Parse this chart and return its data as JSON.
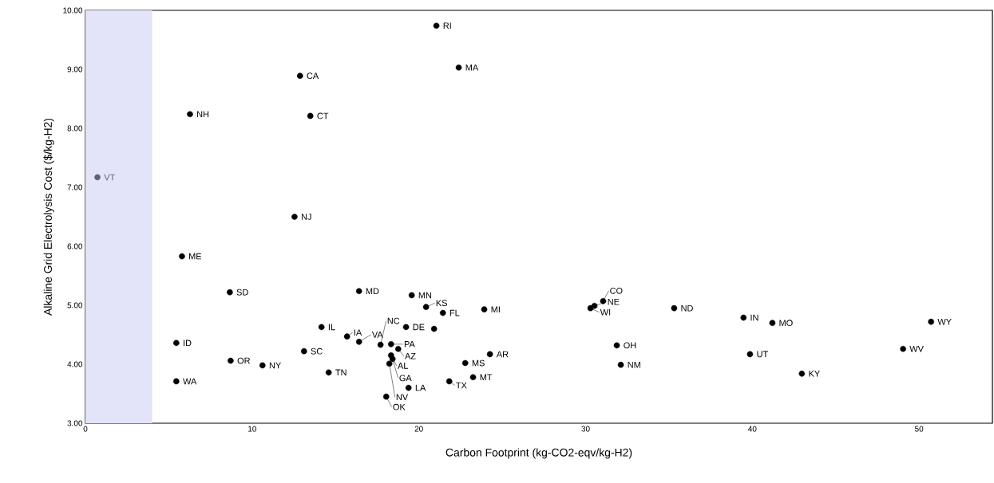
{
  "chart_data": {
    "type": "scatter",
    "xlabel": "Carbon Footprint  (kg-CO2-eqv/kg-H2)",
    "ylabel": "Alkaline Grid Electrolysis Cost ($/kg-H2)",
    "x": [
      21.05,
      22.39,
      12.87,
      6.27,
      13.49,
      0.72,
      12.54,
      5.79,
      8.66,
      16.41,
      19.57,
      20.43,
      21.44,
      23.92,
      19.23,
      20.91,
      14.16,
      15.69,
      16.41,
      17.7,
      18.33,
      18.76,
      18.33,
      18.42,
      18.23,
      13.11,
      14.59,
      18.04,
      19.38,
      21.82,
      23.25,
      22.78,
      24.26,
      5.45,
      8.71,
      10.62,
      5.45,
      30.29,
      30.53,
      31.05,
      35.31,
      31.87,
      32.11,
      39.47,
      41.2,
      39.86,
      42.97,
      50.72,
      49.04
    ],
    "values": [
      9.74,
      9.03,
      8.89,
      8.24,
      8.21,
      7.17,
      6.5,
      5.83,
      5.22,
      5.24,
      5.17,
      4.97,
      4.87,
      4.93,
      4.63,
      4.6,
      4.63,
      4.47,
      4.38,
      4.33,
      4.34,
      4.26,
      4.15,
      4.09,
      4.01,
      4.22,
      3.86,
      3.45,
      3.6,
      3.71,
      3.78,
      4.02,
      4.17,
      4.36,
      4.06,
      3.98,
      3.71,
      4.95,
      4.99,
      5.07,
      4.95,
      4.32,
      3.99,
      4.79,
      4.7,
      4.17,
      3.84,
      4.72,
      4.26
    ],
    "colors": [
      "#000000",
      "#000000",
      "#000000",
      "#000000",
      "#000000",
      "#60607a",
      "#000000",
      "#000000",
      "#000000",
      "#000000",
      "#000000",
      "#000000",
      "#000000",
      "#000000",
      "#000000",
      "#000000",
      "#000000",
      "#000000",
      "#000000",
      "#000000",
      "#000000",
      "#000000",
      "#000000",
      "#000000",
      "#000000",
      "#000000",
      "#000000",
      "#000000",
      "#000000",
      "#000000",
      "#000000",
      "#000000",
      "#000000",
      "#000000",
      "#000000",
      "#000000",
      "#000000",
      "#000000",
      "#000000",
      "#000000",
      "#000000",
      "#000000",
      "#000000",
      "#000000",
      "#000000",
      "#000000",
      "#000000",
      "#000000",
      "#000000"
    ],
    "annotations": [
      {
        "text": "RI",
        "x": 21.05,
        "y": 9.74
      },
      {
        "text": "MA",
        "x": 22.39,
        "y": 9.03
      },
      {
        "text": "CA",
        "x": 12.87,
        "y": 8.89
      },
      {
        "text": "NH",
        "x": 6.27,
        "y": 8.24
      },
      {
        "text": "CT",
        "x": 13.49,
        "y": 8.21
      },
      {
        "text": "VT",
        "x": 0.72,
        "y": 7.17
      },
      {
        "text": "NJ",
        "x": 12.54,
        "y": 6.5
      },
      {
        "text": "ME",
        "x": 5.79,
        "y": 5.83
      },
      {
        "text": "SD",
        "x": 8.66,
        "y": 5.22
      },
      {
        "text": "MD",
        "x": 16.41,
        "y": 5.24
      },
      {
        "text": "MN",
        "x": 19.57,
        "y": 5.17
      },
      {
        "text": "KS",
        "x": 20.43,
        "y": 4.97
      },
      {
        "text": "FL",
        "x": 21.44,
        "y": 4.87
      },
      {
        "text": "MI",
        "x": 23.92,
        "y": 4.93
      },
      {
        "text": "DE",
        "x": 19.23,
        "y": 4.63
      },
      {
        "text": "IL",
        "x": 14.16,
        "y": 4.63
      },
      {
        "text": "IA",
        "x": 15.69,
        "y": 4.47
      },
      {
        "text": "VA",
        "x": 16.41,
        "y": 4.38
      },
      {
        "text": "NC",
        "x": 17.7,
        "y": 4.33
      },
      {
        "text": "PA",
        "x": 18.33,
        "y": 4.34
      },
      {
        "text": "AZ",
        "x": 18.76,
        "y": 4.26
      },
      {
        "text": "AL",
        "x": 18.33,
        "y": 4.15
      },
      {
        "text": "GA",
        "x": 18.42,
        "y": 4.09
      },
      {
        "text": "NV",
        "x": 18.23,
        "y": 4.01
      },
      {
        "text": "SC",
        "x": 13.11,
        "y": 4.22
      },
      {
        "text": "TN",
        "x": 14.59,
        "y": 3.86
      },
      {
        "text": "OK",
        "x": 18.04,
        "y": 3.45
      },
      {
        "text": "LA",
        "x": 19.38,
        "y": 3.6
      },
      {
        "text": "TX",
        "x": 21.82,
        "y": 3.71
      },
      {
        "text": "MT",
        "x": 23.25,
        "y": 3.78
      },
      {
        "text": "MS",
        "x": 22.78,
        "y": 4.02
      },
      {
        "text": "AR",
        "x": 24.26,
        "y": 4.17
      },
      {
        "text": "ID",
        "x": 5.45,
        "y": 4.36
      },
      {
        "text": "OR",
        "x": 8.71,
        "y": 4.06
      },
      {
        "text": "NY",
        "x": 10.62,
        "y": 3.98
      },
      {
        "text": "WA",
        "x": 5.45,
        "y": 3.71
      },
      {
        "text": "WI",
        "x": 30.29,
        "y": 4.95
      },
      {
        "text": "NE",
        "x": 30.53,
        "y": 4.99
      },
      {
        "text": "CO",
        "x": 31.05,
        "y": 5.07
      },
      {
        "text": "ND",
        "x": 35.31,
        "y": 4.95
      },
      {
        "text": "OH",
        "x": 31.87,
        "y": 4.32
      },
      {
        "text": "NM",
        "x": 32.11,
        "y": 3.99
      },
      {
        "text": "IN",
        "x": 39.47,
        "y": 4.79
      },
      {
        "text": "MO",
        "x": 41.2,
        "y": 4.7
      },
      {
        "text": "UT",
        "x": 39.86,
        "y": 4.17
      },
      {
        "text": "KY",
        "x": 42.97,
        "y": 3.84
      },
      {
        "text": "WY",
        "x": 50.72,
        "y": 4.72
      },
      {
        "text": "WV",
        "x": 49.04,
        "y": 4.26
      }
    ],
    "xlim": [
      0,
      54.4
    ],
    "ylim": [
      3,
      10
    ],
    "xticks": [
      0,
      10,
      20,
      30,
      40,
      50
    ],
    "yticks": [
      {
        "value": 3,
        "label": "3.00"
      },
      {
        "value": 4,
        "label": "4.00"
      },
      {
        "value": 5,
        "label": "5.00"
      },
      {
        "value": 6,
        "label": "6.00"
      },
      {
        "value": 7,
        "label": "7.00"
      },
      {
        "value": 8,
        "label": "8.00"
      },
      {
        "value": 9,
        "label": "9.00"
      },
      {
        "value": 10,
        "label": "10.00"
      }
    ],
    "bands": [
      {
        "axis": "x",
        "from": 0,
        "to": 4,
        "color": "#e3e3fa"
      }
    ],
    "marker": "circle"
  }
}
